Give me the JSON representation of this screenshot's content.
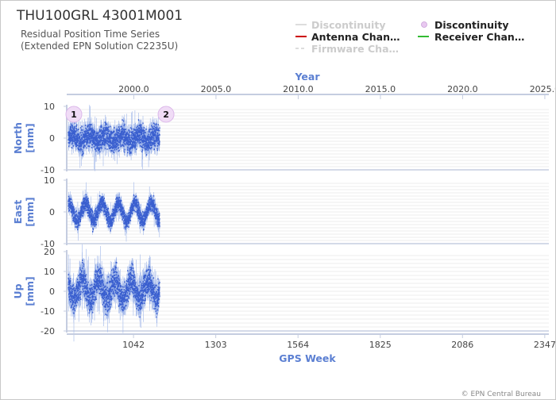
{
  "header": {
    "title": "THU100GRL 43001M001",
    "subtitle_line1": "Residual Position Time Series",
    "subtitle_line2": "(Extended EPN Solution C2235U)"
  },
  "legend": [
    {
      "label": "Discontinuity",
      "style": "line",
      "color": "#dddddd",
      "dimmed": true
    },
    {
      "label": "Discontinuity",
      "style": "circle",
      "color": "#e8c8f0",
      "dimmed": false
    },
    {
      "label": "Antenna Chan…",
      "style": "line",
      "color": "#cc0000",
      "dimmed": false
    },
    {
      "label": "Receiver Chan…",
      "style": "line",
      "color": "#33bb33",
      "dimmed": false
    },
    {
      "label": "Firmware Cha…",
      "style": "dashed",
      "color": "#dddddd",
      "dimmed": true
    }
  ],
  "credit": "© EPN Central Bureau",
  "chart_data": {
    "type": "scatter",
    "top_axis": {
      "label": "Year",
      "ticks": [
        "2000.0",
        "2005.0",
        "2010.0",
        "2015.0",
        "2020.0",
        "2025.0"
      ],
      "values": [
        2000,
        2005,
        2010,
        2015,
        2020,
        2025
      ]
    },
    "bottom_axis": {
      "label": "GPS Week",
      "ticks": [
        "1042",
        "1303",
        "1564",
        "1825",
        "2086",
        "2347"
      ],
      "values": [
        1042,
        1303,
        1564,
        1825,
        2086,
        2347
      ],
      "xlim": [
        830,
        2360
      ]
    },
    "color": "#3a5fcf",
    "data_start_week": 835,
    "data_end_week": 1125,
    "discontinuities": [
      {
        "label": "1",
        "week": 835
      },
      {
        "label": "2",
        "week": 1125
      }
    ],
    "panels": [
      {
        "name": "North",
        "unit": "[mm]",
        "ylim": [
          -10,
          10
        ],
        "ticks": [
          "10",
          "0",
          "-10"
        ],
        "tick_values": [
          10,
          0,
          -10
        ],
        "spread": 3.2,
        "mean": 0,
        "wave": 1.0
      },
      {
        "name": "East",
        "unit": "[mm]",
        "ylim": [
          -10,
          10
        ],
        "ticks": [
          "10",
          "0",
          "-10"
        ],
        "tick_values": [
          10,
          0,
          -10
        ],
        "spread": 2.2,
        "mean": 0,
        "wave": 2.8
      },
      {
        "name": "Up",
        "unit": "[mm]",
        "ylim": [
          -20,
          20
        ],
        "ticks": [
          "20",
          "10",
          "0",
          "-10",
          "-20"
        ],
        "tick_values": [
          20,
          10,
          0,
          -10,
          -20
        ],
        "spread": 6.5,
        "mean": 1,
        "wave": 5.0
      }
    ]
  }
}
